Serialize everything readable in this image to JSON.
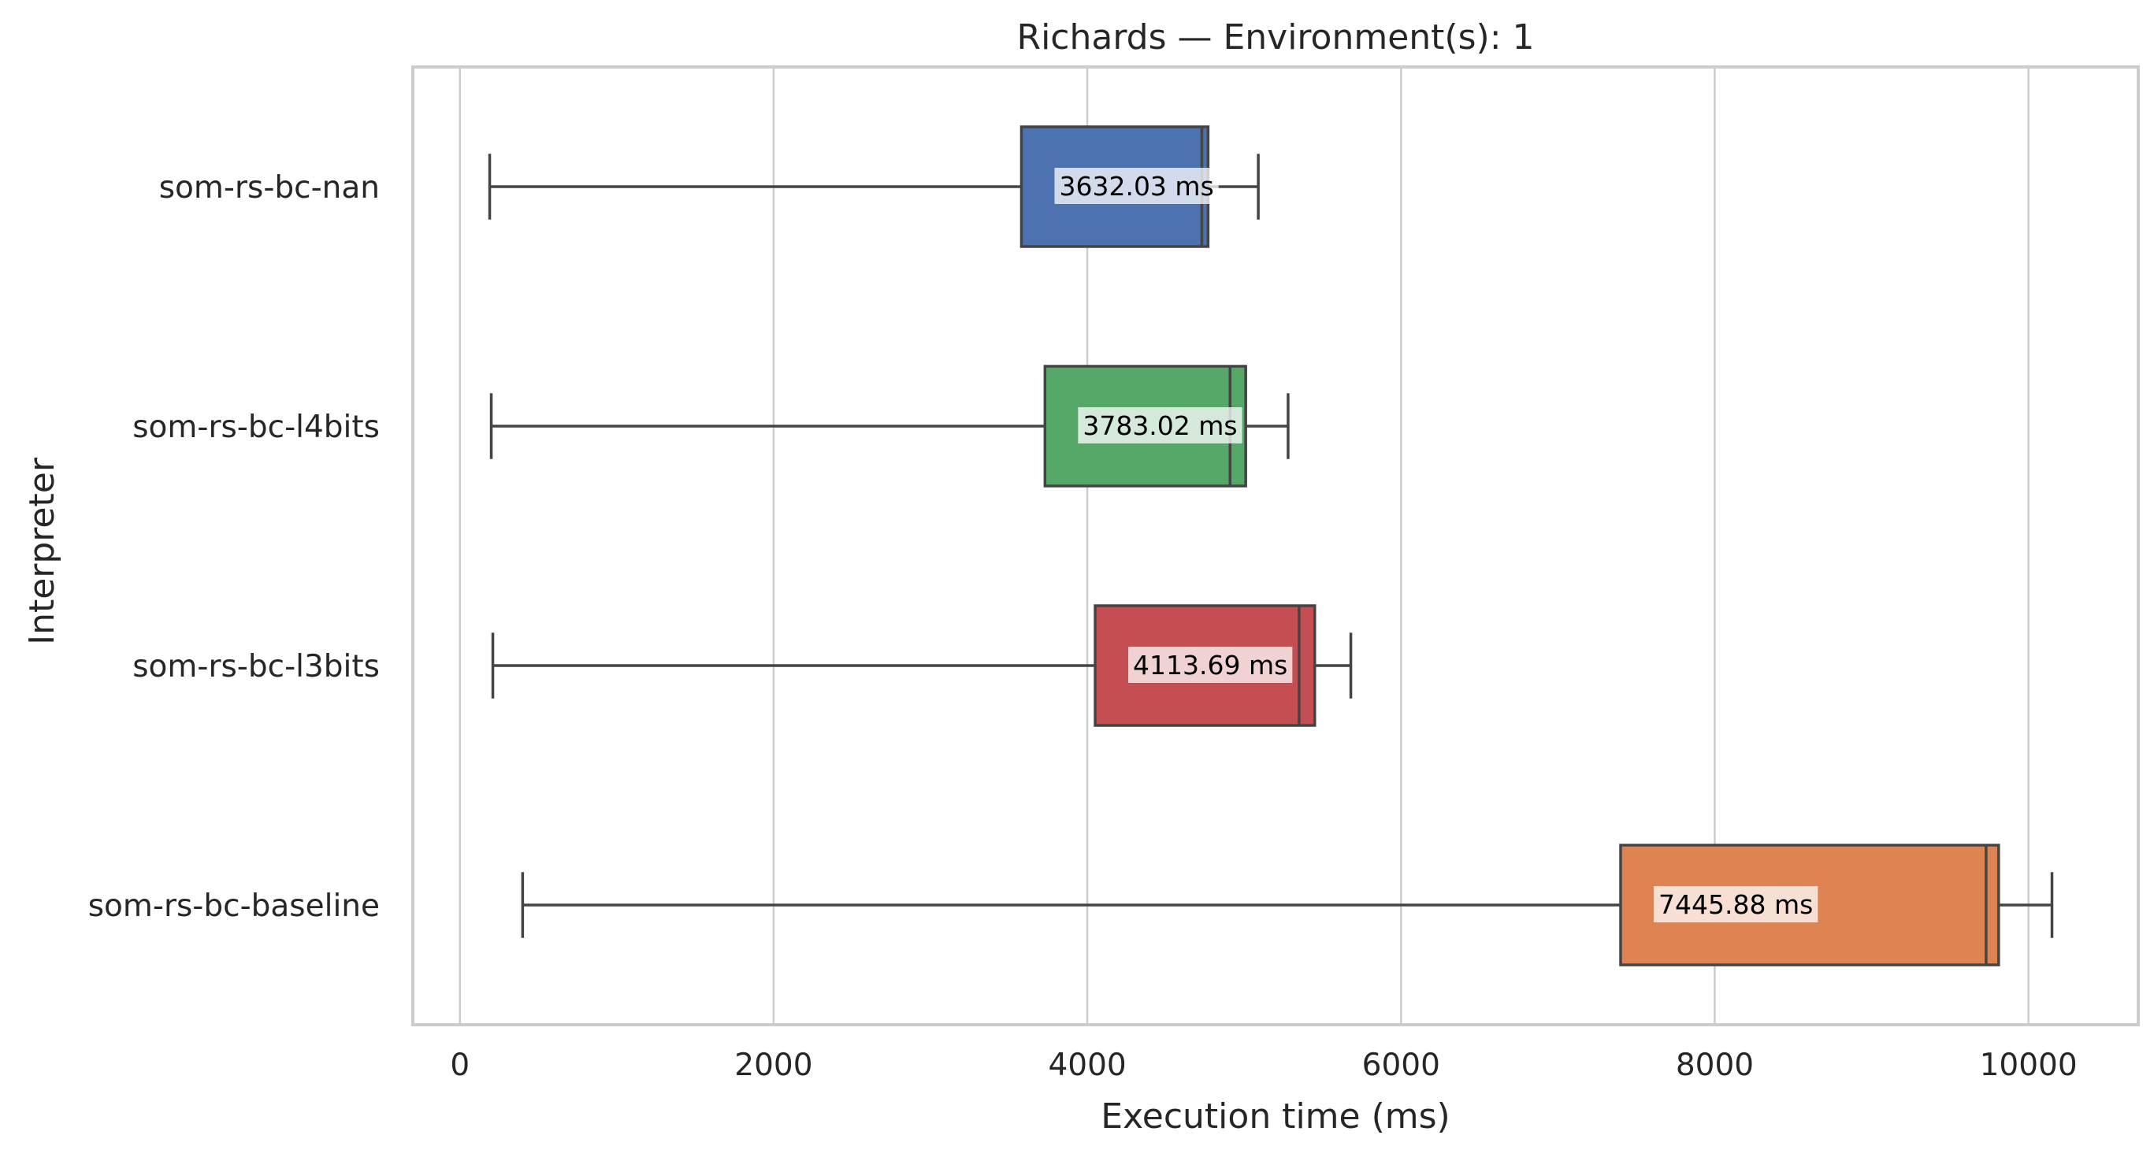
{
  "chart_data": {
    "type": "box",
    "orientation": "horizontal",
    "title": "Richards — Environment(s): 1",
    "xlabel": "Execution time (ms)",
    "ylabel": "Interpreter",
    "xlim": [
      -300,
      10700
    ],
    "x_ticks": [
      0,
      2000,
      4000,
      6000,
      8000,
      10000
    ],
    "grid": "vertical",
    "legend": "none",
    "categories": [
      "som-rs-bc-nan",
      "som-rs-bc-l4bits",
      "som-rs-bc-l3bits",
      "som-rs-bc-baseline"
    ],
    "series": [
      {
        "category": "som-rs-bc-nan",
        "color": "#4c72b0",
        "whisker_low": 190,
        "q1": 3580,
        "median": 4730,
        "q3": 4770,
        "whisker_high": 5090,
        "mean": 3632.03,
        "mean_label": "3632.03 ms"
      },
      {
        "category": "som-rs-bc-l4bits",
        "color": "#55a868",
        "whisker_low": 200,
        "q1": 3730,
        "median": 4910,
        "q3": 5010,
        "whisker_high": 5280,
        "mean": 3783.02,
        "mean_label": "3783.02 ms"
      },
      {
        "category": "som-rs-bc-l3bits",
        "color": "#c44e52",
        "whisker_low": 210,
        "q1": 4050,
        "median": 5350,
        "q3": 5450,
        "whisker_high": 5680,
        "mean": 4113.69,
        "mean_label": "4113.69 ms"
      },
      {
        "category": "som-rs-bc-baseline",
        "color": "#dd8452",
        "whisker_low": 400,
        "q1": 7400,
        "median": 9730,
        "q3": 9810,
        "whisker_high": 10150,
        "mean": 7445.88,
        "mean_label": "7445.88 ms"
      }
    ]
  }
}
